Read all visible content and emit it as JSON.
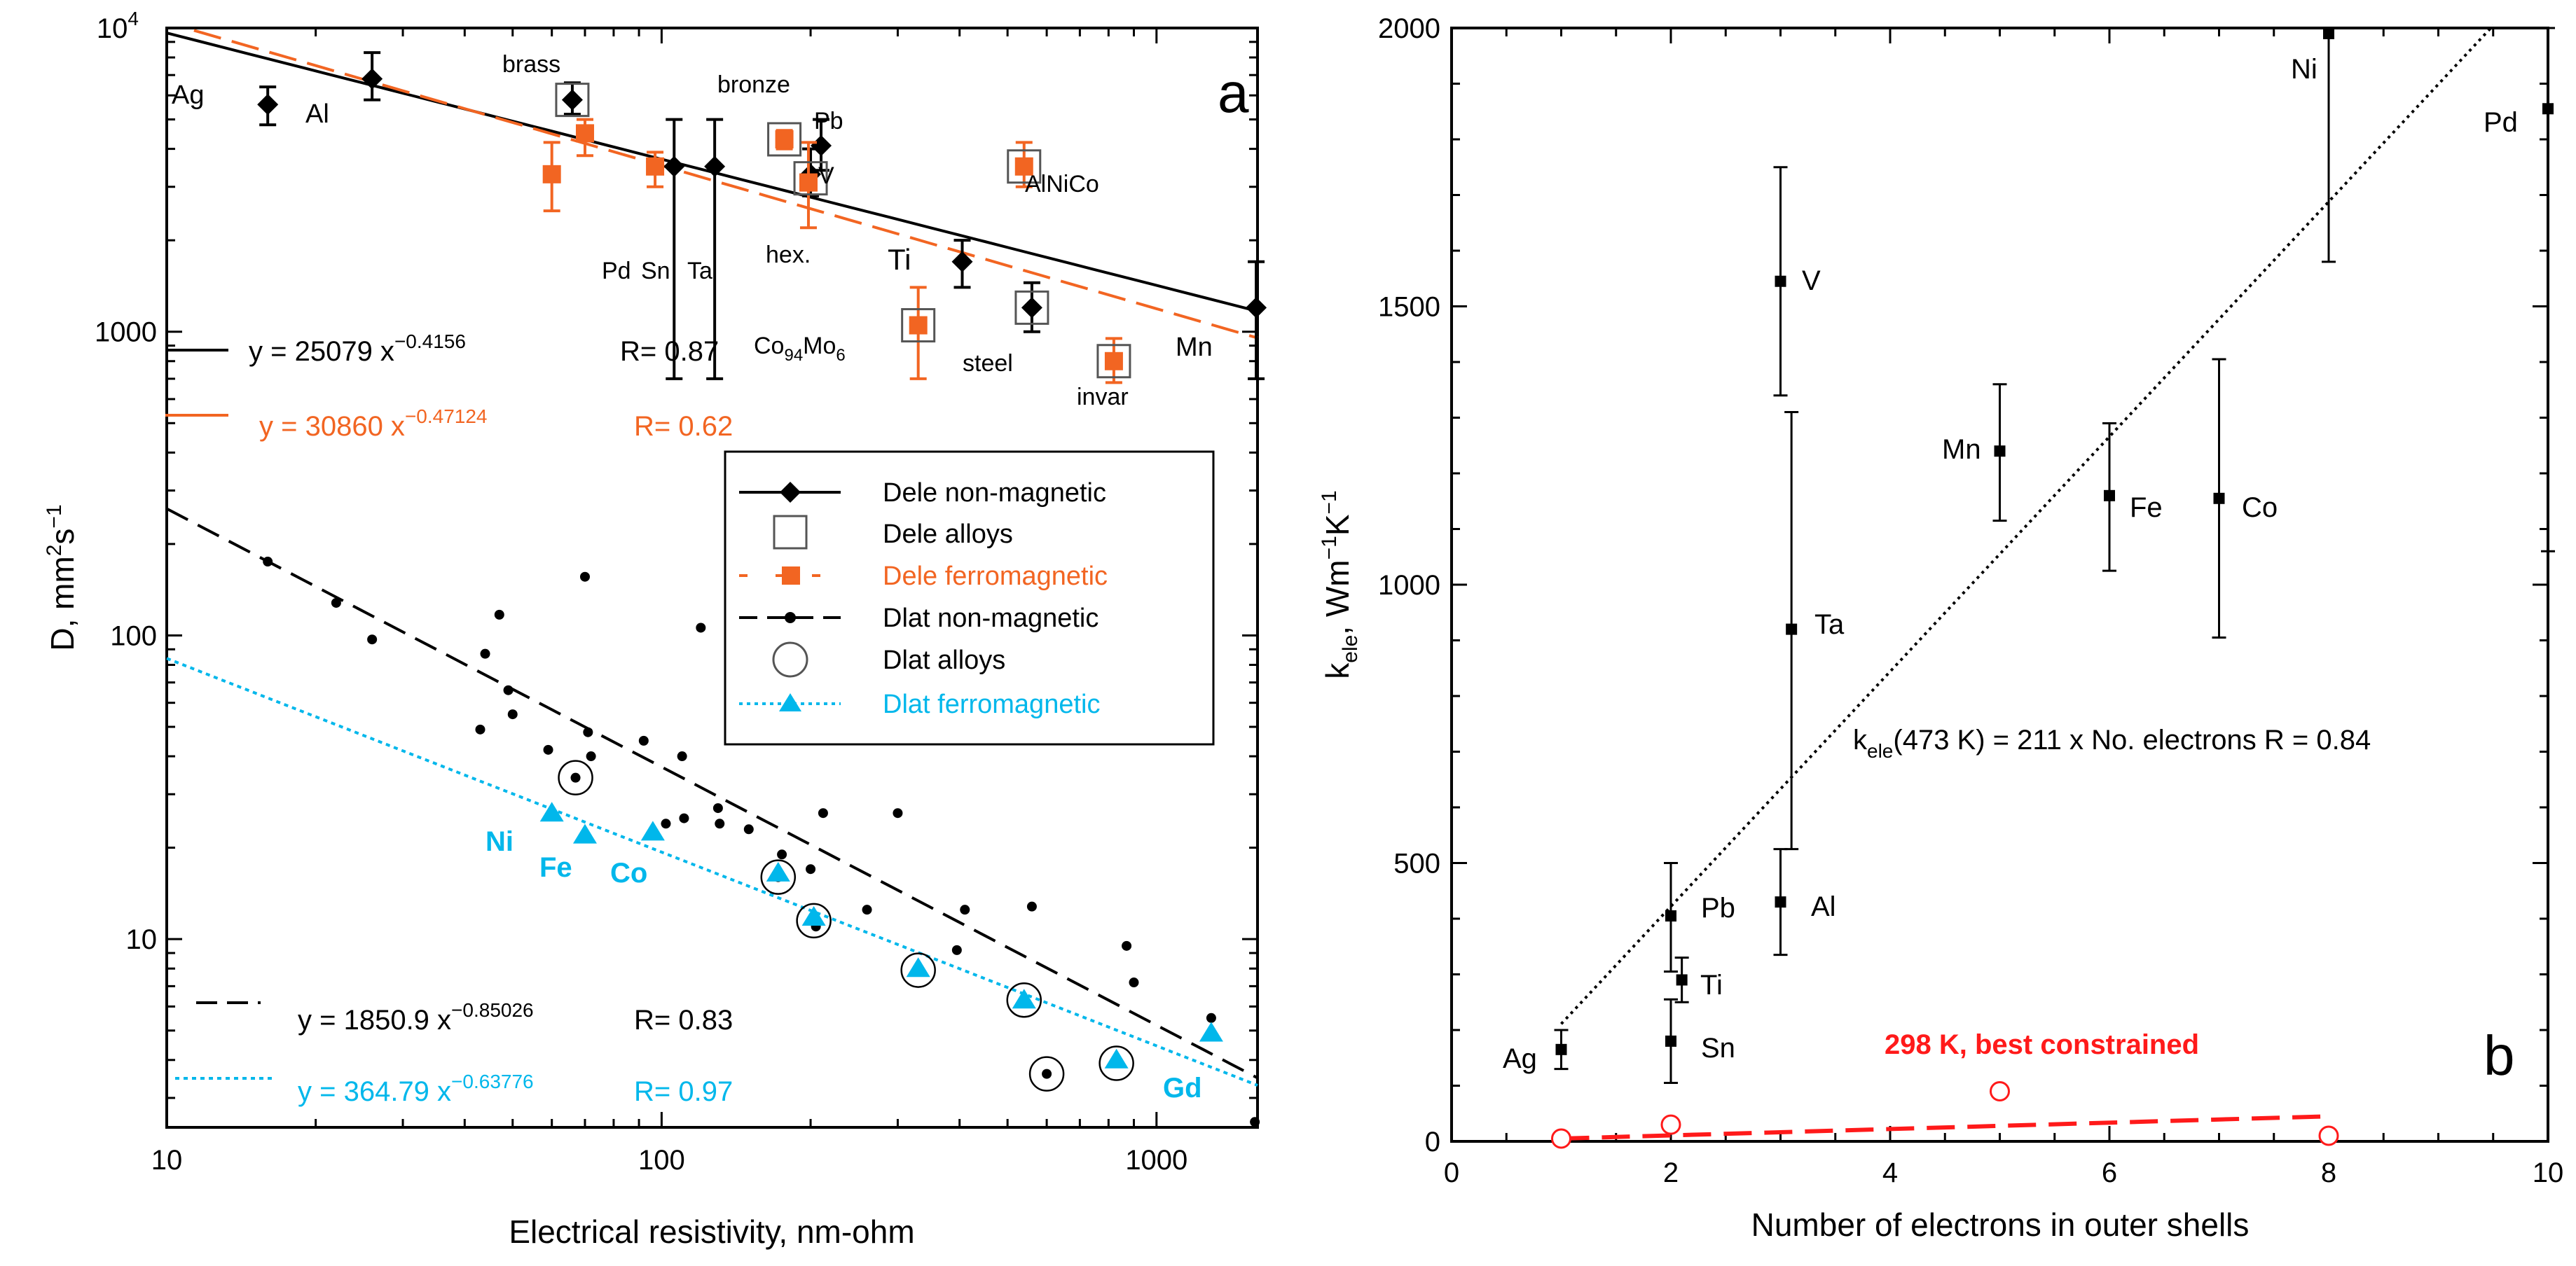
{
  "chart_data": [
    {
      "panel": "a",
      "type": "scatter",
      "xscale": "log",
      "yscale": "log",
      "xlim": [
        10,
        1600
      ],
      "ylim": [
        2.4,
        10000
      ],
      "xlabel": "Electrical resistivity, nm-ohm",
      "ylabel_main": "D, mm",
      "ylabel_sup1": "2",
      "ylabel_mid": "s",
      "ylabel_sup2": "−1",
      "x_ticks": [
        {
          "v": 10,
          "label": "10"
        },
        {
          "v": 100,
          "label": "100"
        },
        {
          "v": 1000,
          "label": "1000"
        }
      ],
      "y_ticks": [
        {
          "v": 10,
          "label": "10"
        },
        {
          "v": 100,
          "label": "100"
        },
        {
          "v": 1000,
          "label": "1000"
        },
        {
          "v": 10000,
          "label": "10",
          "sup": "4"
        }
      ],
      "colors": {
        "black": "#000000",
        "orange": "#f26522",
        "cyan": "#00b7eb",
        "gray": "#555555"
      },
      "series": [
        {
          "name": "Dele non-magnetic",
          "marker": "diamond",
          "color": "#000000",
          "points": [
            {
              "x": 16,
              "y": 5600,
              "lo": 4800,
              "hi": 6400,
              "label": "Ag"
            },
            {
              "x": 26,
              "y": 6800,
              "lo": 5800,
              "hi": 8300,
              "label": "Al"
            },
            {
              "x": 66,
              "y": 5800,
              "lo": 5200,
              "hi": 6600,
              "label": "brass"
            },
            {
              "x": 106,
              "y": 3500,
              "lo": 700,
              "hi": 5000,
              "label": "Sn"
            },
            {
              "x": 128,
              "y": 3500,
              "lo": 700,
              "hi": 5000,
              "label": "Ta"
            },
            {
              "x": 200,
              "y": 3300,
              "lo": 2800,
              "hi": 4000,
              "label": ""
            },
            {
              "x": 210,
              "y": 4100,
              "lo": 3400,
              "hi": 5000,
              "label": "Pb"
            },
            {
              "x": 405,
              "y": 1700,
              "lo": 1400,
              "hi": 2000,
              "label": "Ti"
            },
            {
              "x": 560,
              "y": 1200,
              "lo": 1000,
              "hi": 1450,
              "label": "steel"
            },
            {
              "x": 1590,
              "y": 1200,
              "lo": 700,
              "hi": 1700,
              "label": "Mn"
            }
          ]
        },
        {
          "name": "Dele ferromagnetic",
          "marker": "square",
          "color": "#f26522",
          "points": [
            {
              "x": 60,
              "y": 3300,
              "lo": 2500,
              "hi": 4200,
              "label": "Ni"
            },
            {
              "x": 70,
              "y": 4500,
              "lo": 3800,
              "hi": 5000,
              "label": "Fe"
            },
            {
              "x": 97,
              "y": 3500,
              "lo": 3000,
              "hi": 3900,
              "label": "Pd"
            },
            {
              "x": 177,
              "y": 4300,
              "lo": 4000,
              "hi": 4600,
              "label": "bronze"
            },
            {
              "x": 198,
              "y": 3100,
              "lo": 2200,
              "hi": 4200,
              "label": "V"
            },
            {
              "x": 330,
              "y": 1050,
              "lo": 700,
              "hi": 1400,
              "label": "Co94Mo6"
            },
            {
              "x": 540,
              "y": 3500,
              "lo": 3000,
              "hi": 4200,
              "label": "AlNiCo"
            },
            {
              "x": 820,
              "y": 800,
              "lo": 680,
              "hi": 950,
              "label": "invar"
            }
          ]
        },
        {
          "name": "Dele alloys",
          "marker": "open-square",
          "color": "#555555",
          "points": [
            {
              "x": 66,
              "y": 5800
            },
            {
              "x": 177,
              "y": 4300
            },
            {
              "x": 200,
              "y": 3200
            },
            {
              "x": 330,
              "y": 1050
            },
            {
              "x": 540,
              "y": 3500
            },
            {
              "x": 560,
              "y": 1200
            },
            {
              "x": 820,
              "y": 800
            }
          ]
        },
        {
          "name": "Dlat non-magnetic",
          "marker": "dot",
          "color": "#000000",
          "points": [
            {
              "x": 16,
              "y": 175
            },
            {
              "x": 22,
              "y": 128
            },
            {
              "x": 26,
              "y": 97
            },
            {
              "x": 43,
              "y": 49
            },
            {
              "x": 44,
              "y": 87
            },
            {
              "x": 47,
              "y": 117
            },
            {
              "x": 49,
              "y": 66
            },
            {
              "x": 50,
              "y": 55
            },
            {
              "x": 59,
              "y": 42
            },
            {
              "x": 67,
              "y": 34
            },
            {
              "x": 70,
              "y": 156
            },
            {
              "x": 71,
              "y": 48
            },
            {
              "x": 72,
              "y": 40
            },
            {
              "x": 92,
              "y": 45
            },
            {
              "x": 102,
              "y": 24
            },
            {
              "x": 110,
              "y": 40
            },
            {
              "x": 111,
              "y": 25
            },
            {
              "x": 120,
              "y": 106
            },
            {
              "x": 130,
              "y": 27
            },
            {
              "x": 131,
              "y": 24
            },
            {
              "x": 150,
              "y": 23
            },
            {
              "x": 172,
              "y": 16
            },
            {
              "x": 175,
              "y": 19
            },
            {
              "x": 200,
              "y": 17
            },
            {
              "x": 205,
              "y": 11
            },
            {
              "x": 212,
              "y": 26
            },
            {
              "x": 260,
              "y": 12.5
            },
            {
              "x": 300,
              "y": 26
            },
            {
              "x": 395,
              "y": 9.2
            },
            {
              "x": 410,
              "y": 12.5
            },
            {
              "x": 560,
              "y": 12.8
            },
            {
              "x": 600,
              "y": 3.6
            },
            {
              "x": 870,
              "y": 9.5
            },
            {
              "x": 900,
              "y": 7.2
            },
            {
              "x": 1290,
              "y": 5.5
            },
            {
              "x": 1580,
              "y": 2.5
            }
          ]
        },
        {
          "name": "Dlat alloys",
          "marker": "open-circle",
          "color": "#000000",
          "points": [
            {
              "x": 67,
              "y": 34
            },
            {
              "x": 172,
              "y": 16
            },
            {
              "x": 203,
              "y": 11.5
            },
            {
              "x": 330,
              "y": 7.9
            },
            {
              "x": 540,
              "y": 6.3
            },
            {
              "x": 600,
              "y": 3.6
            },
            {
              "x": 830,
              "y": 3.9
            }
          ]
        },
        {
          "name": "Dlat ferromagnetic",
          "marker": "triangle",
          "color": "#00b7eb",
          "points": [
            {
              "x": 60,
              "y": 26,
              "label": "Ni"
            },
            {
              "x": 70,
              "y": 22,
              "label": "Fe"
            },
            {
              "x": 96,
              "y": 22.5,
              "label": "Co"
            },
            {
              "x": 172,
              "y": 16.5,
              "label": ""
            },
            {
              "x": 203,
              "y": 11.8,
              "label": ""
            },
            {
              "x": 330,
              "y": 8,
              "label": ""
            },
            {
              "x": 540,
              "y": 6.3,
              "label": ""
            },
            {
              "x": 830,
              "y": 4,
              "label": ""
            },
            {
              "x": 1290,
              "y": 4.9,
              "label": "Gd"
            }
          ]
        }
      ],
      "fits": [
        {
          "series": "Dele non-magnetic",
          "a": 25079,
          "b": -0.4156,
          "text": "y = 25079 x",
          "exp": "−0.4156",
          "r": "R= 0.87",
          "color": "#000000",
          "style": "solid"
        },
        {
          "series": "Dele ferromagnetic",
          "a": 30860,
          "b": -0.47124,
          "text": "y = 30860 x",
          "exp": "−0.47124",
          "r": "R= 0.62",
          "color": "#f26522",
          "style": "dashed"
        },
        {
          "series": "Dlat non-magnetic",
          "a": 1850.9,
          "b": -0.85026,
          "text": "y = 1850.9 x",
          "exp": "−0.85026",
          "r": "R= 0.83",
          "color": "#000000",
          "style": "dashed"
        },
        {
          "series": "Dlat ferromagnetic",
          "a": 364.79,
          "b": -0.63776,
          "text": "y = 364.79 x",
          "exp": "−0.63776",
          "r": "R= 0.97",
          "color": "#00b7eb",
          "style": "dotted"
        }
      ],
      "extra_labels": {
        "hex": "hex.",
        "co_main": "Co",
        "co_sub1": "94",
        "co_mid": "Mo",
        "co_sub2": "6"
      },
      "legend": {
        "placement": "center-right",
        "entries": [
          {
            "label": "Dele non-magnetic",
            "color": "#000000"
          },
          {
            "label": "Dele alloys",
            "color": "#000000"
          },
          {
            "label": "Dele ferromagnetic",
            "color": "#f26522"
          },
          {
            "label": "Dlat non-magnetic",
            "color": "#000000"
          },
          {
            "label": "Dlat alloys",
            "color": "#000000"
          },
          {
            "label": "Dlat ferromagnetic",
            "color": "#00b7eb"
          }
        ]
      },
      "panel_label": "a"
    },
    {
      "panel": "b",
      "type": "scatter",
      "xlim": [
        0,
        10
      ],
      "ylim": [
        0,
        2000
      ],
      "xlabel": "Number of electrons in outer shells",
      "ylabel_main": "k",
      "ylabel_sub": "ele",
      "ylabel_rest": ", Wm",
      "ylabel_sup1": "−1",
      "ylabel_k": "K",
      "ylabel_sup2": "−1",
      "x_ticks": [
        0,
        2,
        4,
        6,
        8,
        10
      ],
      "y_ticks": [
        0,
        500,
        1000,
        1500,
        2000
      ],
      "points": [
        {
          "x": 1,
          "y": 165,
          "lo": 130,
          "hi": 200,
          "label": "Ag"
        },
        {
          "x": 2,
          "y": 405,
          "lo": 305,
          "hi": 500,
          "label": "Pb"
        },
        {
          "x": 2.1,
          "y": 290,
          "lo": 250,
          "hi": 330,
          "label": "Ti"
        },
        {
          "x": 2,
          "y": 180,
          "lo": 105,
          "hi": 255,
          "label": "Sn"
        },
        {
          "x": 3,
          "y": 1545,
          "lo": 1340,
          "hi": 1750,
          "label": "V"
        },
        {
          "x": 3.1,
          "y": 920,
          "lo": 525,
          "hi": 1310,
          "label": "Ta"
        },
        {
          "x": 3,
          "y": 430,
          "lo": 335,
          "hi": 525,
          "label": "Al"
        },
        {
          "x": 5,
          "y": 1240,
          "lo": 1115,
          "hi": 1360,
          "label": "Mn"
        },
        {
          "x": 6,
          "y": 1160,
          "lo": 1025,
          "hi": 1290,
          "label": "Fe"
        },
        {
          "x": 7,
          "y": 1155,
          "lo": 905,
          "hi": 1405,
          "label": "Co"
        },
        {
          "x": 8,
          "y": 1990,
          "lo": 1580,
          "hi": 2000,
          "label": "Ni"
        },
        {
          "x": 10,
          "y": 1855,
          "lo": 1060,
          "hi": 2000,
          "label": "Pd"
        }
      ],
      "fit": {
        "slope": 211,
        "x0": 1,
        "x1": 9.5,
        "text": "(473 K) = 211 x  No. electrons  R = 0.84",
        "k": "k",
        "sub": "ele"
      },
      "constrained": {
        "label": "298 K, best constrained",
        "color": "#ff1a1a",
        "points": [
          {
            "x": 1,
            "y": 5
          },
          {
            "x": 2,
            "y": 30
          },
          {
            "x": 5,
            "y": 90
          },
          {
            "x": 8,
            "y": 10
          }
        ],
        "line": [
          {
            "x": 1,
            "y": 5
          },
          {
            "x": 8,
            "y": 45
          }
        ]
      },
      "panel_label": "b"
    }
  ]
}
